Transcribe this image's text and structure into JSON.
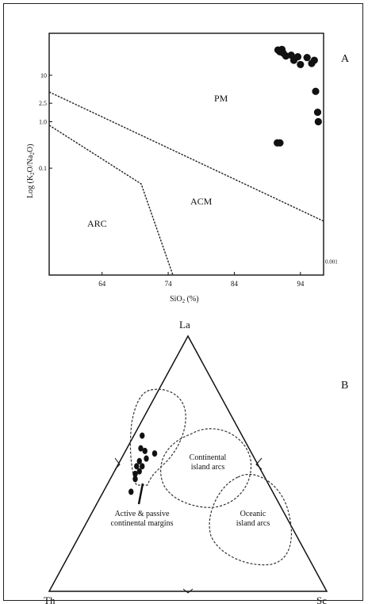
{
  "chart_data": [
    {
      "panel": "A",
      "type": "scatter",
      "xlabel": "SiO2 (%)",
      "ylabel": "Log (K2O/Na2O)",
      "x_ticks": [
        "64",
        "74",
        "84",
        "94"
      ],
      "y_ticks": [
        "10",
        "2.5",
        "1.0",
        "0.1",
        "0.001"
      ],
      "xlim": [
        56,
        97.5
      ],
      "ylim": [
        0.0005,
        80
      ],
      "y_scale": "log",
      "fields": [
        "PM",
        "ACM",
        "ARC"
      ],
      "points": [
        {
          "x": 90.6,
          "y": 35
        },
        {
          "x": 90.9,
          "y": 32
        },
        {
          "x": 91.2,
          "y": 36
        },
        {
          "x": 91.4,
          "y": 30
        },
        {
          "x": 91.8,
          "y": 26
        },
        {
          "x": 92.6,
          "y": 27
        },
        {
          "x": 93.0,
          "y": 21
        },
        {
          "x": 93.6,
          "y": 25
        },
        {
          "x": 94.0,
          "y": 17
        },
        {
          "x": 95.0,
          "y": 24
        },
        {
          "x": 95.7,
          "y": 18
        },
        {
          "x": 96.1,
          "y": 21
        },
        {
          "x": 96.3,
          "y": 4.5
        },
        {
          "x": 96.6,
          "y": 1.6
        },
        {
          "x": 96.7,
          "y": 1.0
        },
        {
          "x": 90.5,
          "y": 0.35
        },
        {
          "x": 90.9,
          "y": 0.35
        }
      ]
    },
    {
      "panel": "B",
      "type": "scatter",
      "ternary_vertices": [
        "La",
        "Th",
        "Sc"
      ],
      "fields": [
        "Continental island arcs",
        "Oceanic island arcs",
        "Active & passive continental margins"
      ],
      "points": [
        {
          "La": 0.61,
          "Th": 0.36,
          "Sc": 0.03
        },
        {
          "La": 0.56,
          "Th": 0.39,
          "Sc": 0.05
        },
        {
          "La": 0.55,
          "Th": 0.38,
          "Sc": 0.07
        },
        {
          "La": 0.54,
          "Th": 0.35,
          "Sc": 0.11
        },
        {
          "La": 0.52,
          "Th": 0.39,
          "Sc": 0.09
        },
        {
          "La": 0.51,
          "Th": 0.42,
          "Sc": 0.07
        },
        {
          "La": 0.49,
          "Th": 0.42,
          "Sc": 0.09
        },
        {
          "La": 0.49,
          "Th": 0.44,
          "Sc": 0.07
        },
        {
          "La": 0.47,
          "Th": 0.44,
          "Sc": 0.09
        },
        {
          "La": 0.46,
          "Th": 0.46,
          "Sc": 0.08
        },
        {
          "La": 0.44,
          "Th": 0.47,
          "Sc": 0.09
        },
        {
          "La": 0.39,
          "Th": 0.51,
          "Sc": 0.1
        }
      ]
    }
  ],
  "labels": {
    "panel_a": "A",
    "panel_b": "B",
    "field_pm": "PM",
    "field_acm": "ACM",
    "field_arc": "ARC",
    "vertex_la": "La",
    "vertex_th": "Th",
    "vertex_sc": "Sc",
    "continental_l1": "Continental",
    "continental_l2": "island arcs",
    "oceanic_l1": "Oceanic",
    "oceanic_l2": "island arcs",
    "margins_l1": "Active & passive",
    "margins_l2": "continental margins"
  }
}
